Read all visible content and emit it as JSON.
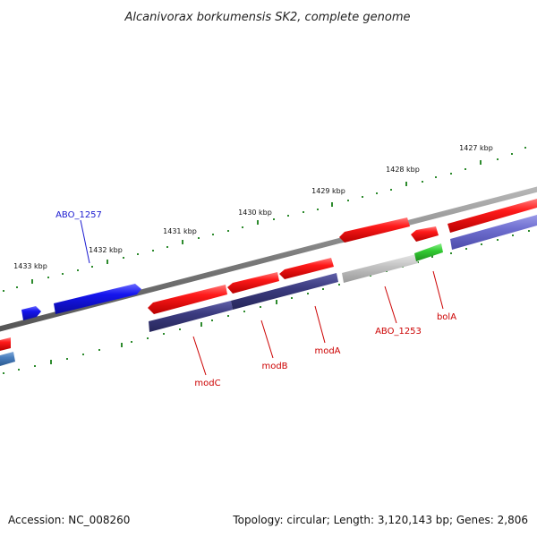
{
  "title": "Alcanivorax borkumensis SK2, complete genome",
  "colors": {
    "backbone": "#7f7f7f",
    "forward_gene": "#ff1a1a",
    "forward_cds": "#2222dd",
    "reverse_cds": "#3c3c80",
    "reverse_cds_light": "#6f6fd0",
    "pseudo": "#c4c4c4",
    "highlight": "#33cc33",
    "tick": "#2e8b2e",
    "label_red": "#cc0000",
    "label_blue": "#1a1ad0"
  },
  "ticks": [
    {
      "label": "1427 kbp"
    },
    {
      "label": "1428 kbp"
    },
    {
      "label": "1429 kbp"
    },
    {
      "label": "1430 kbp"
    },
    {
      "label": "1431 kbp"
    },
    {
      "label": "1432 kbp"
    },
    {
      "label": "1433 kbp"
    }
  ],
  "features": [
    {
      "label": "ABO_1257",
      "strand": "forward",
      "color": "#1a1ad0"
    },
    {
      "label": "modC",
      "strand": "reverse",
      "color": "#cc0000"
    },
    {
      "label": "modB",
      "strand": "reverse",
      "color": "#cc0000"
    },
    {
      "label": "modA",
      "strand": "reverse",
      "color": "#cc0000"
    },
    {
      "label": "ABO_1253",
      "strand": "reverse",
      "color": "#cc0000"
    },
    {
      "label": "bolA",
      "strand": "reverse",
      "color": "#cc0000"
    }
  ],
  "footer": {
    "accession": "Accession: NC_008260",
    "stats": "Topology: circular; Length: 3,120,143 bp; Genes: 2,806"
  }
}
